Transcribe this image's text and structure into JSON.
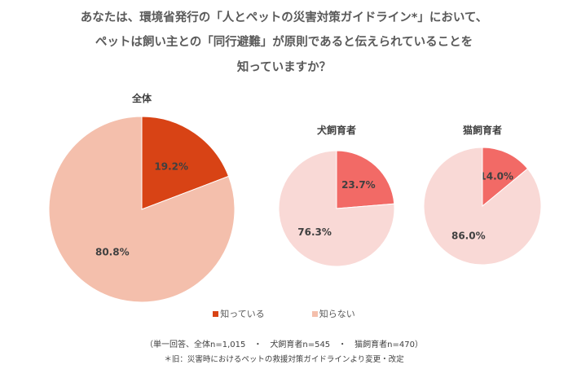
{
  "title_lines": [
    "あなたは、環境省発行の「人とペットの災害対策ガイドライン*」において、",
    "ペットは飼い主との「同行避難」が原則であると伝えられていることを",
    "知っていますか？"
  ],
  "chart_data": [
    {
      "type": "pie",
      "title": "全体",
      "categories": [
        "知っている",
        "知らない"
      ],
      "values": [
        19.2,
        80.8
      ],
      "labels": [
        "19.2%",
        "80.8%"
      ],
      "colors": [
        "#D84315",
        "#F4BFAC"
      ]
    },
    {
      "type": "pie",
      "title": "犬飼育者",
      "categories": [
        "知っている",
        "知らない"
      ],
      "values": [
        23.7,
        76.3
      ],
      "labels": [
        "23.7%",
        "76.3%"
      ],
      "colors": [
        "#F26A66",
        "#F9D9D6"
      ]
    },
    {
      "type": "pie",
      "title": "猫飼育者",
      "categories": [
        "知っている",
        "知らない"
      ],
      "values": [
        14.0,
        86.0
      ],
      "labels": [
        "14.0%",
        "86.0%"
      ],
      "colors": [
        "#F26A66",
        "#F9D9D6"
      ]
    }
  ],
  "legend": [
    {
      "label": "知っている",
      "color": "#D84315"
    },
    {
      "label": "知らない",
      "color": "#F4BFAC"
    }
  ],
  "footnote_sample": "（単一回答、全体n=1,015　・　犬飼育者n=545　・　猫飼育者n=470）",
  "footnote_source": "＊旧：災害時におけるペットの救援対策ガイドラインより変更・改定"
}
